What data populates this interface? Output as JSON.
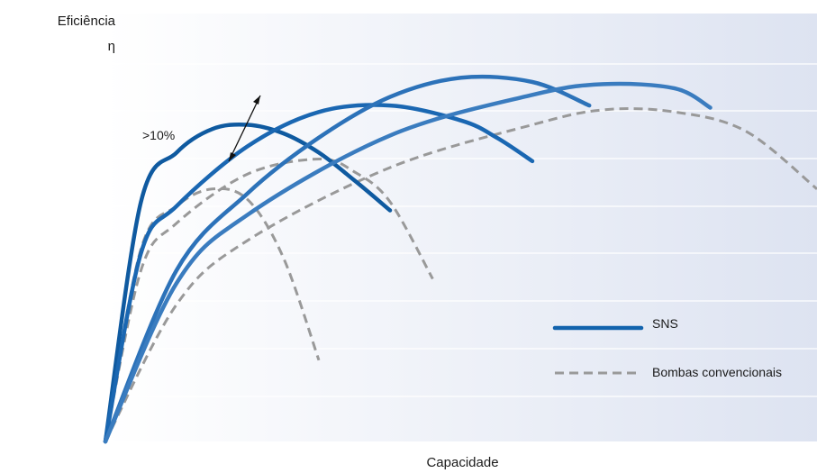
{
  "chart_data": {
    "type": "line",
    "title": "",
    "xlabel": "Capacidade",
    "ylabel": [
      "Eficiência",
      "η"
    ],
    "axis_ticks": "none",
    "grid": "horizontal",
    "legend": "right",
    "annotation": ">10%",
    "colors": {
      "background_left": "#ffffff",
      "background_right": "#dde3f1",
      "grid": "#ffffff",
      "sns_dark": "#0f5aa0",
      "sns_light": "#3f7fc0",
      "conventional": "#999999"
    },
    "legend_entries": [
      {
        "name": "SNS",
        "style": "solid",
        "color": "#1263ad"
      },
      {
        "name": "Bombas convencionais",
        "style": "dashed",
        "color": "#999999"
      }
    ],
    "series": [
      {
        "group": "SNS",
        "color": "#0f5aa0",
        "x": [
          0,
          5,
          10,
          15,
          20,
          25,
          30,
          35,
          40
        ],
        "y": [
          0,
          56,
          67.5,
          73,
          74,
          72,
          67.5,
          61,
          54
        ]
      },
      {
        "group": "SNS",
        "color": "#1a67b2",
        "x": [
          0,
          5,
          10,
          20,
          30,
          40,
          50,
          55,
          60
        ],
        "y": [
          0,
          44,
          55,
          69,
          77,
          78.5,
          75,
          71,
          65.5
        ]
      },
      {
        "group": "SNS",
        "color": "#2c72b9",
        "x": [
          0,
          10,
          20,
          30,
          40,
          50,
          60,
          68
        ],
        "y": [
          0,
          40,
          58,
          71,
          80.5,
          85,
          84,
          78.5
        ]
      },
      {
        "group": "SNS",
        "color": "#3a7cbf",
        "x": [
          0,
          10,
          20,
          40,
          60,
          70,
          80,
          85
        ],
        "y": [
          0,
          37,
          53,
          71.5,
          81,
          83.5,
          82.5,
          78
        ]
      },
      {
        "group": "Bombas convencionais",
        "color": "#999999",
        "x": [
          0,
          5,
          10,
          15,
          20,
          25,
          30
        ],
        "y": [
          0,
          45,
          55,
          59,
          56.5,
          43,
          19
        ]
      },
      {
        "group": "Bombas convencionais",
        "color": "#999999",
        "x": [
          0,
          5,
          10,
          20,
          30,
          35,
          40,
          46
        ],
        "y": [
          0,
          40,
          51,
          62.5,
          66,
          63,
          56,
          38
        ]
      },
      {
        "group": "Bombas convencionais",
        "color": "#999999",
        "x": [
          0,
          10,
          20,
          40,
          60,
          70,
          80,
          90,
          100
        ],
        "y": [
          0,
          32,
          47,
          64,
          74,
          77.5,
          77,
          72.5,
          59
        ]
      }
    ],
    "xlim": [
      0,
      100
    ],
    "ylim": [
      0,
      100
    ]
  }
}
